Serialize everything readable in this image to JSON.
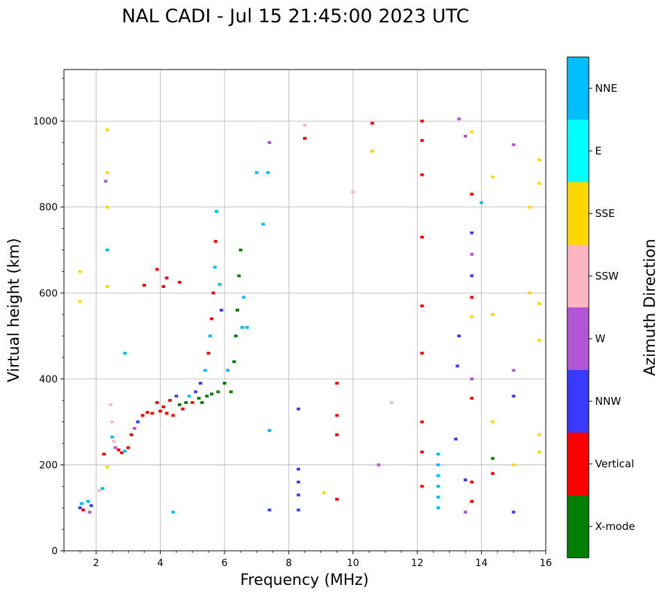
{
  "chart_data": {
    "type": "scatter",
    "title": "NAL CADI - Jul 15 21:45:00 2023 UTC",
    "xlabel": "Frequency (MHz)",
    "ylabel": "Virtual height (km)",
    "xlim": [
      1,
      16
    ],
    "ylim": [
      0,
      1120
    ],
    "xticks": [
      2,
      4,
      6,
      8,
      10,
      12,
      14,
      16
    ],
    "yticks": [
      0,
      200,
      400,
      600,
      800,
      1000
    ],
    "grid": true,
    "colorbar": {
      "label": "Azimuth Direction",
      "categories": [
        "X-mode",
        "Vertical",
        "NNW",
        "W",
        "SSW",
        "SSE",
        "E",
        "NNE"
      ],
      "colors": {
        "X-mode": "#008000",
        "Vertical": "#ff0000",
        "NNW": "#3a3aff",
        "W": "#b455d5",
        "SSW": "#ffb6c1",
        "SSE": "#ffd700",
        "E": "#00ffff",
        "NNE": "#00bfff"
      }
    },
    "points": [
      {
        "f": 1.5,
        "h": 100,
        "c": "NNW"
      },
      {
        "f": 1.55,
        "h": 110,
        "c": "NNE"
      },
      {
        "f": 1.6,
        "h": 95,
        "c": "Vertical"
      },
      {
        "f": 1.75,
        "h": 115,
        "c": "NNE"
      },
      {
        "f": 1.8,
        "h": 90,
        "c": "W"
      },
      {
        "f": 1.85,
        "h": 105,
        "c": "NNW"
      },
      {
        "f": 2.1,
        "h": 140,
        "c": "SSW"
      },
      {
        "f": 2.2,
        "h": 145,
        "c": "NNE"
      },
      {
        "f": 2.25,
        "h": 225,
        "c": "Vertical"
      },
      {
        "f": 2.35,
        "h": 195,
        "c": "SSE"
      },
      {
        "f": 2.45,
        "h": 340,
        "c": "SSW"
      },
      {
        "f": 2.5,
        "h": 300,
        "c": "SSW"
      },
      {
        "f": 2.5,
        "h": 265,
        "c": "NNE"
      },
      {
        "f": 2.55,
        "h": 255,
        "c": "SSW"
      },
      {
        "f": 2.6,
        "h": 240,
        "c": "W"
      },
      {
        "f": 2.7,
        "h": 235,
        "c": "Vertical"
      },
      {
        "f": 2.8,
        "h": 228,
        "c": "Vertical"
      },
      {
        "f": 2.9,
        "h": 232,
        "c": "NNE"
      },
      {
        "f": 3.0,
        "h": 240,
        "c": "Vertical"
      },
      {
        "f": 3.1,
        "h": 270,
        "c": "Vertical"
      },
      {
        "f": 3.2,
        "h": 285,
        "c": "W"
      },
      {
        "f": 3.3,
        "h": 300,
        "c": "NNW"
      },
      {
        "f": 3.45,
        "h": 315,
        "c": "Vertical"
      },
      {
        "f": 3.6,
        "h": 322,
        "c": "Vertical"
      },
      {
        "f": 3.75,
        "h": 320,
        "c": "Vertical"
      },
      {
        "f": 3.9,
        "h": 345,
        "c": "Vertical"
      },
      {
        "f": 4.0,
        "h": 325,
        "c": "Vertical"
      },
      {
        "f": 4.1,
        "h": 335,
        "c": "Vertical"
      },
      {
        "f": 4.2,
        "h": 320,
        "c": "Vertical"
      },
      {
        "f": 4.3,
        "h": 350,
        "c": "Vertical"
      },
      {
        "f": 4.4,
        "h": 315,
        "c": "Vertical"
      },
      {
        "f": 4.5,
        "h": 360,
        "c": "NNW"
      },
      {
        "f": 4.6,
        "h": 340,
        "c": "X-mode"
      },
      {
        "f": 4.7,
        "h": 330,
        "c": "Vertical"
      },
      {
        "f": 4.8,
        "h": 345,
        "c": "X-mode"
      },
      {
        "f": 4.9,
        "h": 360,
        "c": "NNE"
      },
      {
        "f": 5.0,
        "h": 345,
        "c": "Vertical"
      },
      {
        "f": 5.1,
        "h": 370,
        "c": "NNW"
      },
      {
        "f": 5.2,
        "h": 355,
        "c": "X-mode"
      },
      {
        "f": 5.25,
        "h": 390,
        "c": "NNW"
      },
      {
        "f": 5.3,
        "h": 345,
        "c": "X-mode"
      },
      {
        "f": 5.4,
        "h": 420,
        "c": "NNE"
      },
      {
        "f": 5.45,
        "h": 360,
        "c": "X-mode"
      },
      {
        "f": 5.5,
        "h": 460,
        "c": "Vertical"
      },
      {
        "f": 5.55,
        "h": 500,
        "c": "NNE"
      },
      {
        "f": 5.6,
        "h": 540,
        "c": "Vertical"
      },
      {
        "f": 5.6,
        "h": 365,
        "c": "X-mode"
      },
      {
        "f": 5.65,
        "h": 600,
        "c": "Vertical"
      },
      {
        "f": 5.7,
        "h": 660,
        "c": "NNE"
      },
      {
        "f": 5.72,
        "h": 720,
        "c": "Vertical"
      },
      {
        "f": 5.75,
        "h": 790,
        "c": "NNE"
      },
      {
        "f": 5.8,
        "h": 370,
        "c": "X-mode"
      },
      {
        "f": 5.85,
        "h": 620,
        "c": "NNE"
      },
      {
        "f": 5.9,
        "h": 560,
        "c": "NNW"
      },
      {
        "f": 6.0,
        "h": 390,
        "c": "X-mode"
      },
      {
        "f": 6.1,
        "h": 420,
        "c": "NNE"
      },
      {
        "f": 6.2,
        "h": 370,
        "c": "X-mode"
      },
      {
        "f": 6.3,
        "h": 440,
        "c": "X-mode"
      },
      {
        "f": 6.35,
        "h": 500,
        "c": "X-mode"
      },
      {
        "f": 6.4,
        "h": 560,
        "c": "X-mode"
      },
      {
        "f": 6.45,
        "h": 640,
        "c": "X-mode"
      },
      {
        "f": 6.5,
        "h": 700,
        "c": "X-mode"
      },
      {
        "f": 6.6,
        "h": 590,
        "c": "NNE"
      },
      {
        "f": 6.55,
        "h": 520,
        "c": "NNE"
      },
      {
        "f": 3.9,
        "h": 655,
        "c": "Vertical"
      },
      {
        "f": 4.1,
        "h": 615,
        "c": "Vertical"
      },
      {
        "f": 4.2,
        "h": 635,
        "c": "Vertical"
      },
      {
        "f": 3.5,
        "h": 618,
        "c": "Vertical"
      },
      {
        "f": 4.6,
        "h": 625,
        "c": "Vertical"
      },
      {
        "f": 2.35,
        "h": 980,
        "c": "SSE"
      },
      {
        "f": 2.35,
        "h": 880,
        "c": "SSE"
      },
      {
        "f": 2.35,
        "h": 800,
        "c": "SSE"
      },
      {
        "f": 2.35,
        "h": 700,
        "c": "NNE"
      },
      {
        "f": 2.35,
        "h": 615,
        "c": "SSE"
      },
      {
        "f": 1.5,
        "h": 580,
        "c": "SSE"
      },
      {
        "f": 1.5,
        "h": 650,
        "c": "SSE"
      },
      {
        "f": 2.3,
        "h": 860,
        "c": "W"
      },
      {
        "f": 7.0,
        "h": 880,
        "c": "NNE"
      },
      {
        "f": 7.35,
        "h": 880,
        "c": "NNE"
      },
      {
        "f": 7.4,
        "h": 950,
        "c": "W"
      },
      {
        "f": 8.5,
        "h": 960,
        "c": "Vertical"
      },
      {
        "f": 8.5,
        "h": 990,
        "c": "SSW"
      },
      {
        "f": 8.3,
        "h": 330,
        "c": "NNW"
      },
      {
        "f": 8.3,
        "h": 190,
        "c": "NNW"
      },
      {
        "f": 8.3,
        "h": 160,
        "c": "NNW"
      },
      {
        "f": 8.3,
        "h": 130,
        "c": "NNW"
      },
      {
        "f": 8.3,
        "h": 95,
        "c": "NNW"
      },
      {
        "f": 7.4,
        "h": 280,
        "c": "NNE"
      },
      {
        "f": 7.4,
        "h": 95,
        "c": "NNW"
      },
      {
        "f": 9.5,
        "h": 390,
        "c": "Vertical"
      },
      {
        "f": 9.5,
        "h": 315,
        "c": "Vertical"
      },
      {
        "f": 9.5,
        "h": 270,
        "c": "Vertical"
      },
      {
        "f": 9.5,
        "h": 120,
        "c": "Vertical"
      },
      {
        "f": 9.1,
        "h": 135,
        "c": "SSE"
      },
      {
        "f": 10.6,
        "h": 995,
        "c": "Vertical"
      },
      {
        "f": 10.6,
        "h": 930,
        "c": "SSE"
      },
      {
        "f": 10.0,
        "h": 835,
        "c": "SSW"
      },
      {
        "f": 11.2,
        "h": 345,
        "c": "SSW"
      },
      {
        "f": 10.8,
        "h": 200,
        "c": "W"
      },
      {
        "f": 12.15,
        "h": 1000,
        "c": "Vertical"
      },
      {
        "f": 12.15,
        "h": 955,
        "c": "Vertical"
      },
      {
        "f": 12.15,
        "h": 875,
        "c": "Vertical"
      },
      {
        "f": 12.15,
        "h": 730,
        "c": "Vertical"
      },
      {
        "f": 12.15,
        "h": 570,
        "c": "Vertical"
      },
      {
        "f": 12.15,
        "h": 460,
        "c": "Vertical"
      },
      {
        "f": 12.15,
        "h": 300,
        "c": "Vertical"
      },
      {
        "f": 12.15,
        "h": 230,
        "c": "Vertical"
      },
      {
        "f": 12.15,
        "h": 150,
        "c": "Vertical"
      },
      {
        "f": 12.65,
        "h": 225,
        "c": "NNE"
      },
      {
        "f": 12.65,
        "h": 200,
        "c": "NNE"
      },
      {
        "f": 12.65,
        "h": 175,
        "c": "NNE"
      },
      {
        "f": 12.65,
        "h": 150,
        "c": "NNE"
      },
      {
        "f": 12.65,
        "h": 125,
        "c": "NNE"
      },
      {
        "f": 12.65,
        "h": 100,
        "c": "NNE"
      },
      {
        "f": 13.3,
        "h": 1005,
        "c": "W"
      },
      {
        "f": 13.5,
        "h": 965,
        "c": "W"
      },
      {
        "f": 13.7,
        "h": 975,
        "c": "SSE"
      },
      {
        "f": 13.7,
        "h": 830,
        "c": "Vertical"
      },
      {
        "f": 13.7,
        "h": 740,
        "c": "NNW"
      },
      {
        "f": 13.7,
        "h": 690,
        "c": "W"
      },
      {
        "f": 13.7,
        "h": 640,
        "c": "NNW"
      },
      {
        "f": 13.7,
        "h": 590,
        "c": "Vertical"
      },
      {
        "f": 13.7,
        "h": 545,
        "c": "SSE"
      },
      {
        "f": 13.7,
        "h": 400,
        "c": "W"
      },
      {
        "f": 13.7,
        "h": 355,
        "c": "Vertical"
      },
      {
        "f": 13.7,
        "h": 160,
        "c": "Vertical"
      },
      {
        "f": 13.7,
        "h": 115,
        "c": "Vertical"
      },
      {
        "f": 13.25,
        "h": 430,
        "c": "NNW"
      },
      {
        "f": 13.3,
        "h": 500,
        "c": "NNW"
      },
      {
        "f": 13.2,
        "h": 260,
        "c": "NNW"
      },
      {
        "f": 13.5,
        "h": 165,
        "c": "NNW"
      },
      {
        "f": 13.5,
        "h": 90,
        "c": "W"
      },
      {
        "f": 14.0,
        "h": 810,
        "c": "NNE"
      },
      {
        "f": 14.35,
        "h": 215,
        "c": "X-mode"
      },
      {
        "f": 14.35,
        "h": 180,
        "c": "Vertical"
      },
      {
        "f": 14.35,
        "h": 300,
        "c": "SSE"
      },
      {
        "f": 14.35,
        "h": 550,
        "c": "SSE"
      },
      {
        "f": 14.35,
        "h": 870,
        "c": "SSE"
      },
      {
        "f": 15.0,
        "h": 360,
        "c": "NNW"
      },
      {
        "f": 15.0,
        "h": 420,
        "c": "W"
      },
      {
        "f": 15.0,
        "h": 945,
        "c": "W"
      },
      {
        "f": 15.0,
        "h": 90,
        "c": "NNW"
      },
      {
        "f": 15.0,
        "h": 200,
        "c": "SSE"
      },
      {
        "f": 15.5,
        "h": 800,
        "c": "SSE"
      },
      {
        "f": 15.5,
        "h": 600,
        "c": "SSE"
      },
      {
        "f": 15.8,
        "h": 910,
        "c": "SSE"
      },
      {
        "f": 15.8,
        "h": 855,
        "c": "SSE"
      },
      {
        "f": 15.8,
        "h": 575,
        "c": "SSE"
      },
      {
        "f": 15.8,
        "h": 490,
        "c": "SSE"
      },
      {
        "f": 15.8,
        "h": 270,
        "c": "SSE"
      },
      {
        "f": 15.8,
        "h": 230,
        "c": "SSE"
      },
      {
        "f": 2.9,
        "h": 460,
        "c": "NNE"
      },
      {
        "f": 4.4,
        "h": 90,
        "c": "NNE"
      },
      {
        "f": 7.2,
        "h": 760,
        "c": "NNE"
      },
      {
        "f": 6.7,
        "h": 520,
        "c": "NNE"
      }
    ]
  }
}
